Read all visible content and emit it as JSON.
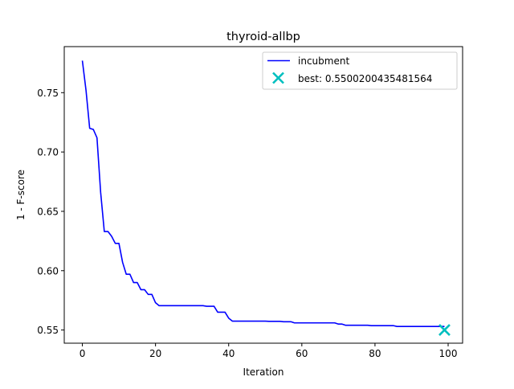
{
  "chart_data": {
    "type": "line",
    "title": "thyroid-allbp",
    "xlabel": "Iteration",
    "ylabel": "1 - F-score",
    "xlim": [
      -4.95,
      103.95
    ],
    "ylim": [
      0.5389,
      0.7888
    ],
    "xticks": [
      0,
      20,
      40,
      60,
      80,
      100
    ],
    "xtick_labels": [
      "0",
      "20",
      "40",
      "60",
      "80",
      "100"
    ],
    "yticks": [
      0.55,
      0.6,
      0.65,
      0.7,
      0.75
    ],
    "ytick_labels": [
      "0.55",
      "0.60",
      "0.65",
      "0.70",
      "0.75"
    ],
    "grid": false,
    "legend_position": "top-right",
    "series": [
      {
        "name": "incubment",
        "color": "#0000ff",
        "style": "line",
        "x": [
          0,
          1,
          2,
          3,
          4,
          5,
          6,
          7,
          8,
          9,
          10,
          11,
          12,
          13,
          14,
          15,
          16,
          17,
          18,
          19,
          20,
          21,
          22,
          23,
          24,
          25,
          26,
          27,
          28,
          29,
          30,
          31,
          32,
          33,
          34,
          35,
          36,
          37,
          38,
          39,
          40,
          41,
          42,
          43,
          44,
          45,
          46,
          47,
          48,
          49,
          50,
          51,
          52,
          53,
          54,
          55,
          56,
          57,
          58,
          59,
          60,
          61,
          62,
          63,
          64,
          65,
          66,
          67,
          68,
          69,
          70,
          71,
          72,
          73,
          74,
          75,
          76,
          77,
          78,
          79,
          80,
          81,
          82,
          83,
          84,
          85,
          86,
          87,
          88,
          89,
          90,
          91,
          92,
          93,
          94,
          95,
          96,
          97,
          98,
          99
        ],
        "y": [
          0.777,
          0.752,
          0.72,
          0.719,
          0.712,
          0.666,
          0.633,
          0.633,
          0.629,
          0.623,
          0.623,
          0.607,
          0.597,
          0.597,
          0.59,
          0.59,
          0.584,
          0.584,
          0.58,
          0.58,
          0.573,
          0.5705,
          0.5705,
          0.5705,
          0.5705,
          0.5705,
          0.5705,
          0.5705,
          0.5705,
          0.5705,
          0.5705,
          0.5705,
          0.5705,
          0.5705,
          0.57,
          0.57,
          0.57,
          0.565,
          0.565,
          0.565,
          0.56,
          0.5575,
          0.5575,
          0.5575,
          0.5575,
          0.5575,
          0.5575,
          0.5575,
          0.5575,
          0.5575,
          0.5575,
          0.5573,
          0.5573,
          0.5573,
          0.5573,
          0.557,
          0.557,
          0.557,
          0.556,
          0.556,
          0.556,
          0.556,
          0.556,
          0.556,
          0.556,
          0.556,
          0.556,
          0.556,
          0.556,
          0.556,
          0.555,
          0.555,
          0.554,
          0.554,
          0.554,
          0.554,
          0.554,
          0.554,
          0.554,
          0.5537,
          0.5537,
          0.5537,
          0.5537,
          0.5537,
          0.5537,
          0.5537,
          0.553,
          0.553,
          0.553,
          0.553,
          0.553,
          0.553,
          0.553,
          0.553,
          0.553,
          0.553,
          0.553,
          0.553,
          0.553,
          0.553
        ]
      },
      {
        "name": "best: 0.5500200435481564",
        "color": "#00bfbf",
        "style": "x-marker",
        "x": [
          99
        ],
        "y": [
          0.5500200435481564
        ]
      }
    ]
  }
}
